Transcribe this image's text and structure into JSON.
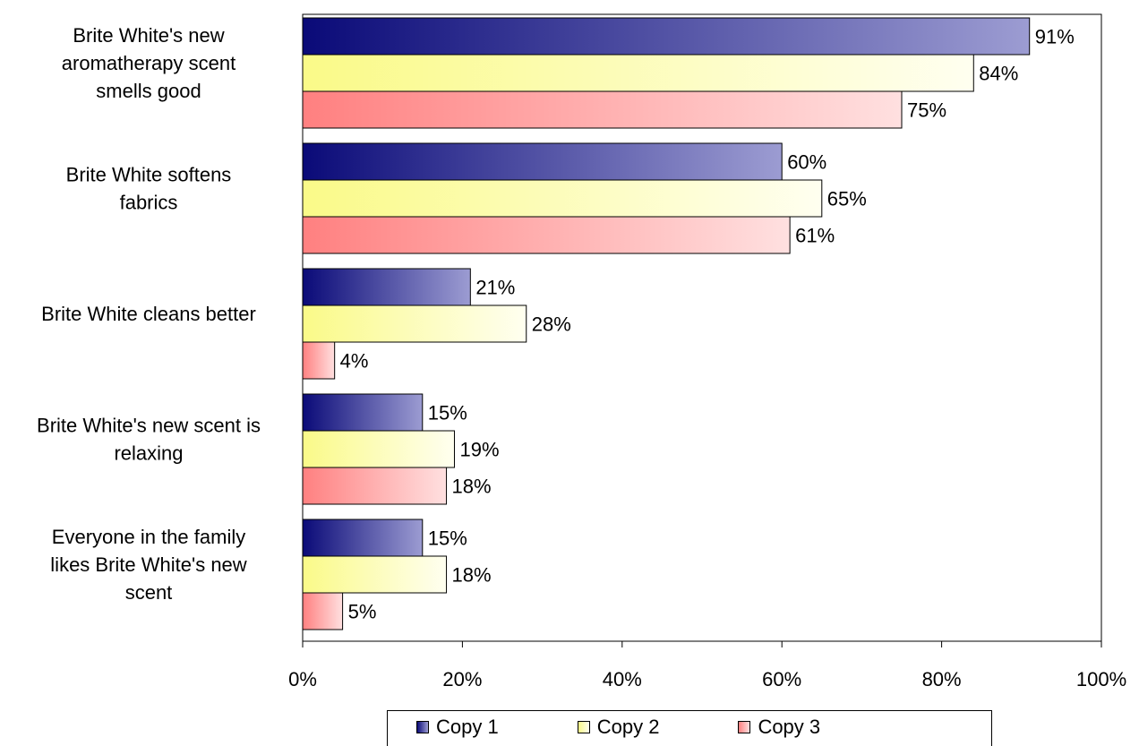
{
  "chart_data": {
    "type": "bar",
    "orientation": "horizontal",
    "categories": [
      "Brite White's new aromatherapy scent smells good",
      "Brite White softens fabrics",
      "Brite White cleans better",
      "Brite White's new scent is relaxing",
      "Everyone in the family likes Brite White's new scent"
    ],
    "category_lines": [
      [
        "Brite White's new",
        "aromatherapy scent",
        "smells good"
      ],
      [
        "Brite White softens",
        "fabrics"
      ],
      [
        "Brite White cleans better"
      ],
      [
        "Brite White's new scent is",
        "relaxing"
      ],
      [
        "Everyone in the family",
        "likes Brite White's new",
        "scent"
      ]
    ],
    "series": [
      {
        "name": "Copy 1",
        "values": [
          91,
          60,
          21,
          15,
          15
        ],
        "labels": [
          "91%",
          "60%",
          "21%",
          "15%",
          "15%"
        ],
        "color_start": "#0a0a78",
        "color_end": "#9c9cd2"
      },
      {
        "name": "Copy 2",
        "values": [
          84,
          65,
          28,
          19,
          18
        ],
        "labels": [
          "84%",
          "65%",
          "28%",
          "19%",
          "18%"
        ],
        "color_start": "#fafa88",
        "color_end": "#fffff0"
      },
      {
        "name": "Copy 3",
        "values": [
          75,
          61,
          4,
          18,
          5
        ],
        "labels": [
          "75%",
          "61%",
          "4%",
          "18%",
          "5%"
        ],
        "color_start": "#ff8080",
        "color_end": "#ffe0e0"
      }
    ],
    "xlim": [
      0,
      100
    ],
    "ticks": [
      0,
      20,
      40,
      60,
      80,
      100
    ],
    "tick_labels": [
      "0%",
      "20%",
      "40%",
      "60%",
      "80%",
      "100%"
    ],
    "legend_position": "bottom",
    "grid": false
  },
  "legend": {
    "items": [
      {
        "label": "Copy 1"
      },
      {
        "label": "Copy 2"
      },
      {
        "label": "Copy 3"
      }
    ]
  }
}
